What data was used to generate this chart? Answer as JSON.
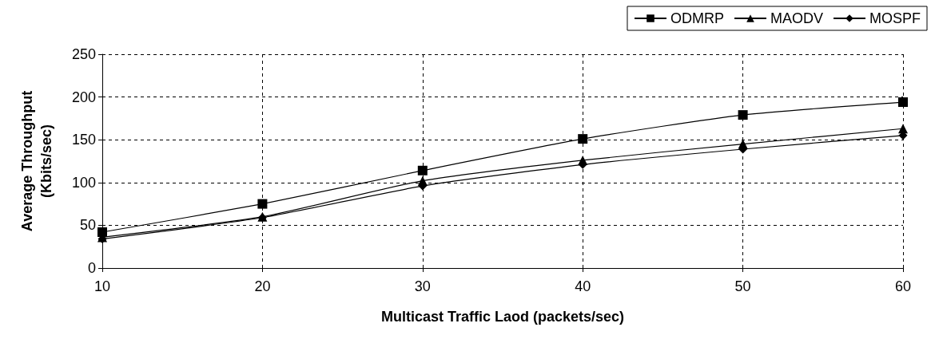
{
  "chart_data": {
    "type": "line",
    "xlabel": "Multicast Traffic Laod (packets/sec)",
    "ylabel": "Average Throughput\n(Kbits/sec)",
    "x": [
      10,
      20,
      30,
      40,
      50,
      60
    ],
    "xlim": [
      10,
      60
    ],
    "xticks": [
      10,
      20,
      30,
      40,
      50,
      60
    ],
    "ylim": [
      0,
      250
    ],
    "yticks": [
      0,
      50,
      100,
      150,
      200,
      250
    ],
    "grid": true,
    "legend": "top right",
    "line_style": "solid",
    "series": [
      {
        "name": "ODMRP",
        "color": "#000000",
        "marker": "square",
        "values": [
          42,
          75,
          114,
          151,
          179,
          194
        ]
      },
      {
        "name": "MAODV",
        "color": "#000000",
        "marker": "triangle",
        "values": [
          36,
          60,
          102,
          126,
          145,
          163
        ]
      },
      {
        "name": "MOSPF",
        "color": "#000000",
        "marker": "diamond",
        "values": [
          34,
          59,
          96,
          121,
          139,
          155
        ]
      }
    ]
  }
}
